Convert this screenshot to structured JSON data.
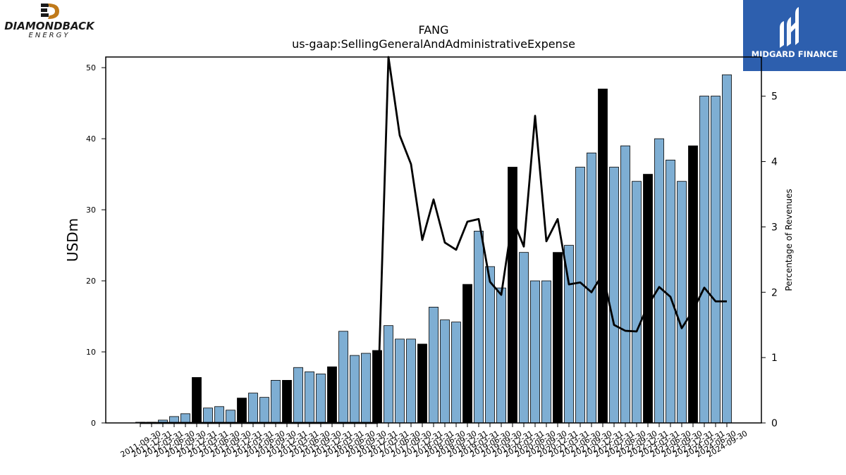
{
  "company_logo": {
    "name": "DIAMONDBACK",
    "subname": "ENERGY",
    "colors": {
      "dark": "#1a1a1a",
      "accent": "#c07a1a"
    }
  },
  "brand": {
    "name": "MIDGARD FINANCE",
    "color": "#2d5fae"
  },
  "chart_data": {
    "type": "bar",
    "title": "FANG",
    "subtitle": "us-gaap:SellingGeneralAndAdministrativeExpense",
    "ylabel": "USDm",
    "y2label": "Percentage of Revenues",
    "ylim": [
      0,
      51.5
    ],
    "y2lim": [
      0,
      5.6
    ],
    "yticks": [
      0,
      10,
      20,
      30,
      40,
      50
    ],
    "y2ticks": [
      0,
      1,
      2,
      3,
      4,
      5
    ],
    "grid": false,
    "colors": {
      "quarter": "#7eaed3",
      "annual": "#000000",
      "line": "#000000"
    },
    "categories": [
      "2011-09-30",
      "2011-12-31",
      "2012-03-31",
      "2012-06-30",
      "2012-09-30",
      "2012-12-31",
      "2013-03-31",
      "2013-06-30",
      "2013-09-30",
      "2013-12-31",
      "2014-03-31",
      "2014-06-30",
      "2014-09-30",
      "2014-12-31",
      "2015-03-31",
      "2015-06-30",
      "2015-09-30",
      "2015-12-31",
      "2016-03-31",
      "2016-06-30",
      "2016-09-30",
      "2016-12-31",
      "2017-03-31",
      "2017-06-30",
      "2017-09-30",
      "2017-12-31",
      "2018-03-31",
      "2018-06-30",
      "2018-09-30",
      "2018-12-31",
      "2019-03-31",
      "2019-06-30",
      "2019-09-30",
      "2019-12-31",
      "2020-03-31",
      "2020-06-30",
      "2020-09-30",
      "2020-12-31",
      "2021-03-31",
      "2021-06-30",
      "2021-09-30",
      "2021-12-31",
      "2022-03-31",
      "2022-06-30",
      "2022-09-30",
      "2022-12-31",
      "2023-03-31",
      "2023-06-30",
      "2023-09-30",
      "2023-12-31",
      "2024-03-31",
      "2024-06-30",
      "2024-09-30"
    ],
    "xtick_labels": [
      "2011-09-30",
      "2011-12-31",
      "2012-03-31",
      "2012-06-30",
      "2012-09-30",
      "2012-12-31",
      "2013-03-31",
      "2013-06-30",
      "2013-09-30",
      "2013-12-31",
      "2014-03-31",
      "2014-06-30",
      "2014-09-30",
      "2014-12-31",
      "2015-03-31",
      "2015-06-30",
      "2015-09-30",
      "2015-12-31",
      "2016-03-31",
      "2016-06-30",
      "2016-09-30",
      "2016-12-31",
      "2017-03-31",
      "2017-06-30",
      "2017-09-30",
      "2017-12-31",
      "2018-03-31",
      "2018-06-30",
      "2018-09-30",
      "2018-12-31",
      "2019-03-31",
      "2019-06-30",
      "2019-09-30",
      "2019-12-31",
      "2020-03-31",
      "2020-06-30",
      "2020-09-30",
      "2020-12-31",
      "2021-03-31",
      "2021-06-30",
      "2021-09-30",
      "2021-12-31",
      "2022-03-31",
      "2022-06-30",
      "2022-09-30",
      "2022-12-31",
      "2023-03-31",
      "2023-06-30",
      "2023-09-30",
      "2023-12-31",
      "2024-03-31",
      "2024-06-30",
      "2024-09-30"
    ],
    "bars": [
      {
        "value": 0.1,
        "annual": false
      },
      {
        "value": 0.1,
        "annual": false
      },
      {
        "value": 0.4,
        "annual": false
      },
      {
        "value": 0.9,
        "annual": false
      },
      {
        "value": 1.3,
        "annual": false
      },
      {
        "value": 6.4,
        "annual": true
      },
      {
        "value": 2.1,
        "annual": false
      },
      {
        "value": 2.3,
        "annual": false
      },
      {
        "value": 1.8,
        "annual": false
      },
      {
        "value": 3.5,
        "annual": true
      },
      {
        "value": 4.2,
        "annual": false
      },
      {
        "value": 3.6,
        "annual": false
      },
      {
        "value": 6.0,
        "annual": false
      },
      {
        "value": 6.0,
        "annual": true
      },
      {
        "value": 7.8,
        "annual": false
      },
      {
        "value": 7.2,
        "annual": false
      },
      {
        "value": 6.9,
        "annual": false
      },
      {
        "value": 7.9,
        "annual": true
      },
      {
        "value": 12.9,
        "annual": false
      },
      {
        "value": 9.5,
        "annual": false
      },
      {
        "value": 9.8,
        "annual": false
      },
      {
        "value": 10.2,
        "annual": true
      },
      {
        "value": 13.7,
        "annual": false
      },
      {
        "value": 11.8,
        "annual": false
      },
      {
        "value": 11.8,
        "annual": false
      },
      {
        "value": 11.1,
        "annual": true
      },
      {
        "value": 16.3,
        "annual": false
      },
      {
        "value": 14.5,
        "annual": false
      },
      {
        "value": 14.2,
        "annual": false
      },
      {
        "value": 19.5,
        "annual": true
      },
      {
        "value": 27.0,
        "annual": false
      },
      {
        "value": 22.0,
        "annual": false
      },
      {
        "value": 19.0,
        "annual": false
      },
      {
        "value": 36.0,
        "annual": true
      },
      {
        "value": 24.0,
        "annual": false
      },
      {
        "value": 20.0,
        "annual": false
      },
      {
        "value": 20.0,
        "annual": false
      },
      {
        "value": 24.0,
        "annual": true
      },
      {
        "value": 25.0,
        "annual": false
      },
      {
        "value": 36.0,
        "annual": false
      },
      {
        "value": 38.0,
        "annual": false
      },
      {
        "value": 47.0,
        "annual": true
      },
      {
        "value": 36.0,
        "annual": false
      },
      {
        "value": 39.0,
        "annual": false
      },
      {
        "value": 34.0,
        "annual": false
      },
      {
        "value": 35.0,
        "annual": true
      },
      {
        "value": 40.0,
        "annual": false
      },
      {
        "value": 37.0,
        "annual": false
      },
      {
        "value": 34.0,
        "annual": false
      },
      {
        "value": 39.0,
        "annual": true
      },
      {
        "value": 46.0,
        "annual": false
      },
      {
        "value": 46.0,
        "annual": false
      },
      {
        "value": 49.0,
        "annual": false
      }
    ],
    "pct_series": [
      0,
      0,
      0,
      0,
      0,
      0,
      0,
      0,
      0,
      0,
      0,
      0,
      0,
      0,
      0,
      0,
      0,
      0,
      0,
      0,
      0,
      0,
      5.6,
      4.4,
      3.96,
      2.8,
      3.42,
      2.76,
      2.65,
      3.08,
      3.12,
      2.16,
      1.96,
      3.12,
      2.7,
      4.7,
      2.78,
      3.12,
      2.12,
      2.15,
      2.0,
      2.28,
      1.5,
      1.41,
      1.4,
      1.8,
      2.08,
      1.93,
      1.45,
      1.72,
      2.07,
      1.86,
      1.86
    ]
  }
}
